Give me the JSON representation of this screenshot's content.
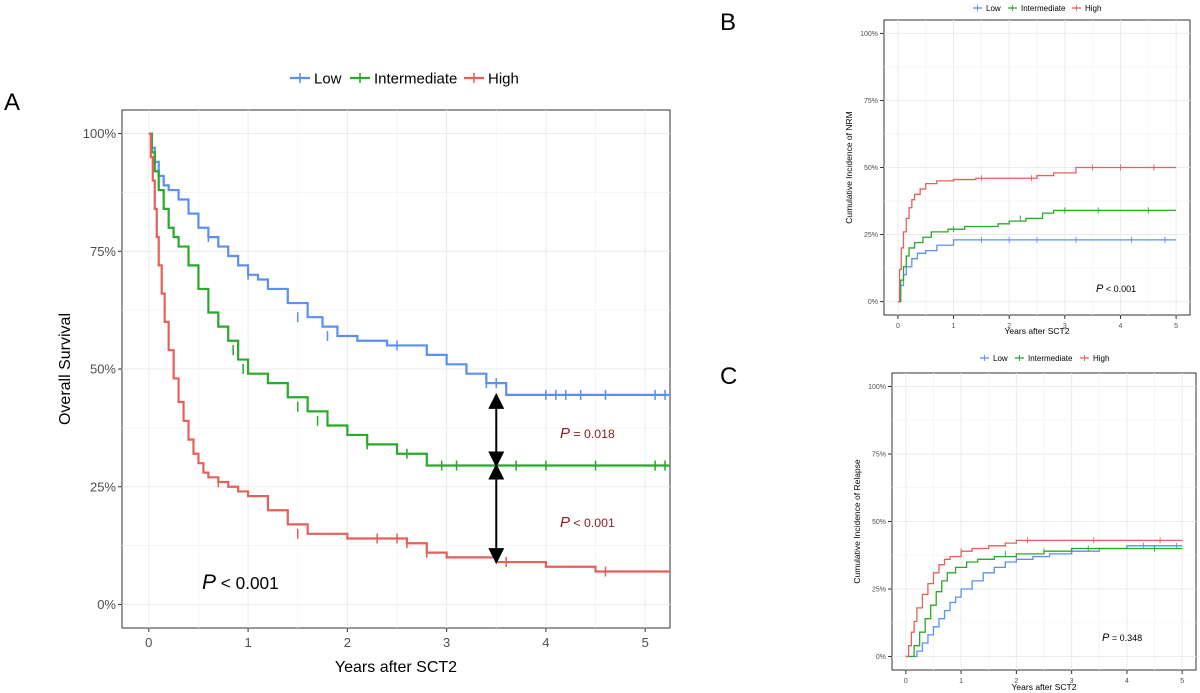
{
  "panels": {
    "A": {
      "letter": "A"
    },
    "B": {
      "letter": "B"
    },
    "C": {
      "letter": "C"
    }
  },
  "colors": {
    "Low": "#5b8ff0",
    "Intermediate": "#2aa82a",
    "High": "#e5605a",
    "p_text_A": "#8b1a1a",
    "grid": "#ebebeb",
    "arrow": "#000000"
  },
  "chart_data": [
    {
      "panel": "A",
      "type": "line",
      "step": true,
      "title": "",
      "xlabel": "Years after SCT2",
      "ylabel": "Overall Survival",
      "xlim": [
        -0.27,
        5.25
      ],
      "ylim": [
        -0.05,
        1.05
      ],
      "x_ticks": [
        0,
        1,
        2,
        3,
        4,
        5
      ],
      "x_tick_labels": [
        "0",
        "1",
        "2",
        "3",
        "4",
        "5"
      ],
      "y_ticks": [
        0,
        0.25,
        0.5,
        0.75,
        1.0
      ],
      "y_tick_labels": [
        "0%",
        "25%",
        "50%",
        "75%",
        "100%"
      ],
      "grid": true,
      "legend_position": "top",
      "legend": [
        "Low",
        "Intermediate",
        "High"
      ],
      "series": [
        {
          "name": "Low",
          "x": [
            0,
            0.03,
            0.06,
            0.1,
            0.15,
            0.2,
            0.3,
            0.4,
            0.5,
            0.6,
            0.7,
            0.8,
            0.9,
            1.0,
            1.1,
            1.2,
            1.4,
            1.6,
            1.75,
            1.9,
            2.1,
            2.4,
            2.8,
            3.0,
            3.2,
            3.4,
            3.6,
            5.25
          ],
          "y": [
            1.0,
            0.97,
            0.94,
            0.91,
            0.89,
            0.88,
            0.86,
            0.83,
            0.8,
            0.78,
            0.76,
            0.74,
            0.72,
            0.7,
            0.69,
            0.67,
            0.64,
            0.61,
            0.59,
            0.57,
            0.56,
            0.55,
            0.53,
            0.51,
            0.49,
            0.47,
            0.445,
            0.445
          ],
          "censor_x": [
            0.6,
            1.0,
            1.5,
            1.8,
            2.5,
            3.4,
            3.5,
            4.0,
            4.1,
            4.2,
            4.35,
            4.6,
            5.1,
            5.2
          ],
          "censor_y": [
            0.78,
            0.7,
            0.61,
            0.57,
            0.55,
            0.47,
            0.47,
            0.445,
            0.445,
            0.445,
            0.445,
            0.445,
            0.445,
            0.445
          ]
        },
        {
          "name": "Intermediate",
          "x": [
            0,
            0.03,
            0.06,
            0.1,
            0.15,
            0.2,
            0.25,
            0.3,
            0.4,
            0.5,
            0.6,
            0.7,
            0.8,
            0.9,
            1.0,
            1.2,
            1.4,
            1.6,
            1.8,
            2.0,
            2.2,
            2.5,
            2.8,
            5.25
          ],
          "y": [
            1.0,
            0.96,
            0.92,
            0.88,
            0.84,
            0.8,
            0.78,
            0.76,
            0.72,
            0.67,
            0.62,
            0.59,
            0.56,
            0.52,
            0.49,
            0.47,
            0.44,
            0.41,
            0.38,
            0.36,
            0.34,
            0.32,
            0.295,
            0.295
          ],
          "censor_x": [
            0.85,
            0.95,
            1.5,
            1.7,
            2.2,
            2.6,
            2.95,
            3.1,
            3.5,
            3.7,
            4.0,
            4.5,
            5.1,
            5.2
          ],
          "censor_y": [
            0.54,
            0.5,
            0.42,
            0.39,
            0.34,
            0.32,
            0.295,
            0.295,
            0.295,
            0.295,
            0.295,
            0.295,
            0.295,
            0.295
          ]
        },
        {
          "name": "High",
          "x": [
            0,
            0.02,
            0.04,
            0.06,
            0.08,
            0.1,
            0.13,
            0.16,
            0.2,
            0.25,
            0.3,
            0.35,
            0.4,
            0.45,
            0.5,
            0.55,
            0.6,
            0.7,
            0.8,
            0.9,
            1.0,
            1.2,
            1.4,
            1.6,
            2.0,
            2.6,
            2.8,
            3.0,
            3.5,
            4.0,
            4.5,
            5.25
          ],
          "y": [
            1.0,
            0.95,
            0.9,
            0.84,
            0.78,
            0.72,
            0.66,
            0.6,
            0.54,
            0.48,
            0.43,
            0.39,
            0.35,
            0.32,
            0.3,
            0.28,
            0.27,
            0.26,
            0.25,
            0.24,
            0.23,
            0.2,
            0.17,
            0.15,
            0.14,
            0.13,
            0.11,
            0.1,
            0.09,
            0.08,
            0.07,
            0.07
          ],
          "censor_x": [
            0.7,
            1.5,
            2.3,
            2.5,
            2.6,
            2.8,
            3.6,
            4.6
          ],
          "censor_y": [
            0.26,
            0.15,
            0.14,
            0.14,
            0.13,
            0.11,
            0.09,
            0.07
          ]
        }
      ],
      "annotations": [
        {
          "text_italic": "P",
          "text_rest": " = 0.018"
        },
        {
          "text_italic": "P",
          "text_rest": " < 0.001"
        },
        {
          "text_italic": "P",
          "text_rest": " < 0.001"
        }
      ],
      "arrows": [
        {
          "x": 3.5,
          "y_from": 0.445,
          "y_to": 0.295
        },
        {
          "x": 3.5,
          "y_from": 0.295,
          "y_to": 0.09
        }
      ]
    },
    {
      "panel": "B",
      "type": "line",
      "step": true,
      "title": "",
      "xlabel": "Years after SCT2",
      "ylabel": "Cumulative Incidence of NRM",
      "xlim": [
        -0.25,
        5.25
      ],
      "ylim": [
        -0.05,
        1.05
      ],
      "x_ticks": [
        0,
        1,
        2,
        3,
        4,
        5
      ],
      "x_tick_labels": [
        "0",
        "1",
        "2",
        "3",
        "4",
        "5"
      ],
      "y_ticks": [
        0,
        0.25,
        0.5,
        0.75,
        1.0
      ],
      "y_tick_labels": [
        "0%",
        "25%",
        "50%",
        "75%",
        "100%"
      ],
      "grid": true,
      "legend_position": "top",
      "legend": [
        "Low",
        "Intermediate",
        "High"
      ],
      "series": [
        {
          "name": "Low",
          "x": [
            0,
            0.05,
            0.1,
            0.15,
            0.25,
            0.35,
            0.5,
            0.7,
            1.0,
            5.0
          ],
          "y": [
            0,
            0.06,
            0.1,
            0.13,
            0.16,
            0.18,
            0.19,
            0.21,
            0.23,
            0.23
          ],
          "censor_x": [
            1.5,
            2.0,
            2.5,
            3.2,
            4.2,
            4.8
          ],
          "censor_y": [
            0.23,
            0.23,
            0.23,
            0.23,
            0.23,
            0.23
          ]
        },
        {
          "name": "Intermediate",
          "x": [
            0,
            0.05,
            0.1,
            0.15,
            0.2,
            0.3,
            0.45,
            0.6,
            0.9,
            1.2,
            1.8,
            2.0,
            2.3,
            2.6,
            2.8,
            5.0
          ],
          "y": [
            0,
            0.08,
            0.13,
            0.17,
            0.2,
            0.22,
            0.24,
            0.26,
            0.27,
            0.28,
            0.29,
            0.3,
            0.31,
            0.33,
            0.34,
            0.34
          ],
          "censor_x": [
            1.0,
            2.2,
            3.0,
            3.6,
            4.5
          ],
          "censor_y": [
            0.27,
            0.31,
            0.34,
            0.34,
            0.34
          ]
        },
        {
          "name": "High",
          "x": [
            0,
            0.03,
            0.06,
            0.1,
            0.15,
            0.2,
            0.25,
            0.3,
            0.4,
            0.5,
            0.7,
            1.0,
            1.4,
            2.0,
            2.5,
            2.8,
            3.2,
            5.0
          ],
          "y": [
            0,
            0.12,
            0.2,
            0.26,
            0.31,
            0.35,
            0.38,
            0.4,
            0.42,
            0.44,
            0.45,
            0.455,
            0.46,
            0.46,
            0.47,
            0.48,
            0.5,
            0.5
          ],
          "censor_x": [
            1.5,
            2.4,
            3.5,
            4.0,
            4.6
          ],
          "censor_y": [
            0.46,
            0.46,
            0.5,
            0.5,
            0.5
          ]
        }
      ],
      "annotations": [
        {
          "text_italic": "P",
          "text_rest": " < 0.001"
        }
      ]
    },
    {
      "panel": "C",
      "type": "line",
      "step": true,
      "title": "",
      "xlabel": "Years after SCT2",
      "ylabel": "Cumulative Incidence of Relapse",
      "xlim": [
        -0.25,
        5.25
      ],
      "ylim": [
        -0.05,
        1.05
      ],
      "x_ticks": [
        0,
        1,
        2,
        3,
        4,
        5
      ],
      "x_tick_labels": [
        "0",
        "1",
        "2",
        "3",
        "4",
        "5"
      ],
      "y_ticks": [
        0,
        0.25,
        0.5,
        0.75,
        1.0
      ],
      "y_tick_labels": [
        "0%",
        "25%",
        "50%",
        "75%",
        "100%"
      ],
      "grid": true,
      "legend_position": "top",
      "legend": [
        "Low",
        "Intermediate",
        "High"
      ],
      "series": [
        {
          "name": "Low",
          "x": [
            0,
            0.2,
            0.3,
            0.4,
            0.5,
            0.6,
            0.7,
            0.8,
            0.9,
            1.0,
            1.2,
            1.4,
            1.6,
            1.8,
            2.0,
            2.3,
            2.6,
            3.0,
            3.5,
            4.0,
            5.0
          ],
          "y": [
            0,
            0.02,
            0.05,
            0.08,
            0.11,
            0.14,
            0.17,
            0.2,
            0.22,
            0.25,
            0.28,
            0.31,
            0.33,
            0.35,
            0.36,
            0.37,
            0.38,
            0.39,
            0.4,
            0.41,
            0.41
          ],
          "censor_x": [
            2.0,
            3.0,
            4.3,
            4.9
          ],
          "censor_y": [
            0.36,
            0.39,
            0.41,
            0.41
          ]
        },
        {
          "name": "Intermediate",
          "x": [
            0,
            0.15,
            0.25,
            0.35,
            0.45,
            0.55,
            0.65,
            0.75,
            0.9,
            1.1,
            1.3,
            1.6,
            2.0,
            2.5,
            3.0,
            5.0
          ],
          "y": [
            0,
            0.04,
            0.09,
            0.14,
            0.19,
            0.24,
            0.28,
            0.31,
            0.33,
            0.35,
            0.36,
            0.37,
            0.38,
            0.39,
            0.4,
            0.4
          ],
          "censor_x": [
            1.8,
            2.5,
            3.3,
            4.5
          ],
          "censor_y": [
            0.38,
            0.39,
            0.4,
            0.4
          ]
        },
        {
          "name": "High",
          "x": [
            0,
            0.05,
            0.1,
            0.15,
            0.2,
            0.3,
            0.4,
            0.5,
            0.6,
            0.7,
            0.8,
            1.0,
            1.2,
            1.5,
            1.8,
            2.0,
            5.0
          ],
          "y": [
            0,
            0.04,
            0.09,
            0.13,
            0.18,
            0.23,
            0.27,
            0.31,
            0.34,
            0.36,
            0.37,
            0.39,
            0.4,
            0.41,
            0.42,
            0.43,
            0.43
          ],
          "censor_x": [
            1.0,
            2.2,
            3.4,
            4.6
          ],
          "censor_y": [
            0.39,
            0.43,
            0.43,
            0.43
          ]
        }
      ],
      "annotations": [
        {
          "text_italic": "P",
          "text_rest": " = 0.348"
        }
      ]
    }
  ]
}
